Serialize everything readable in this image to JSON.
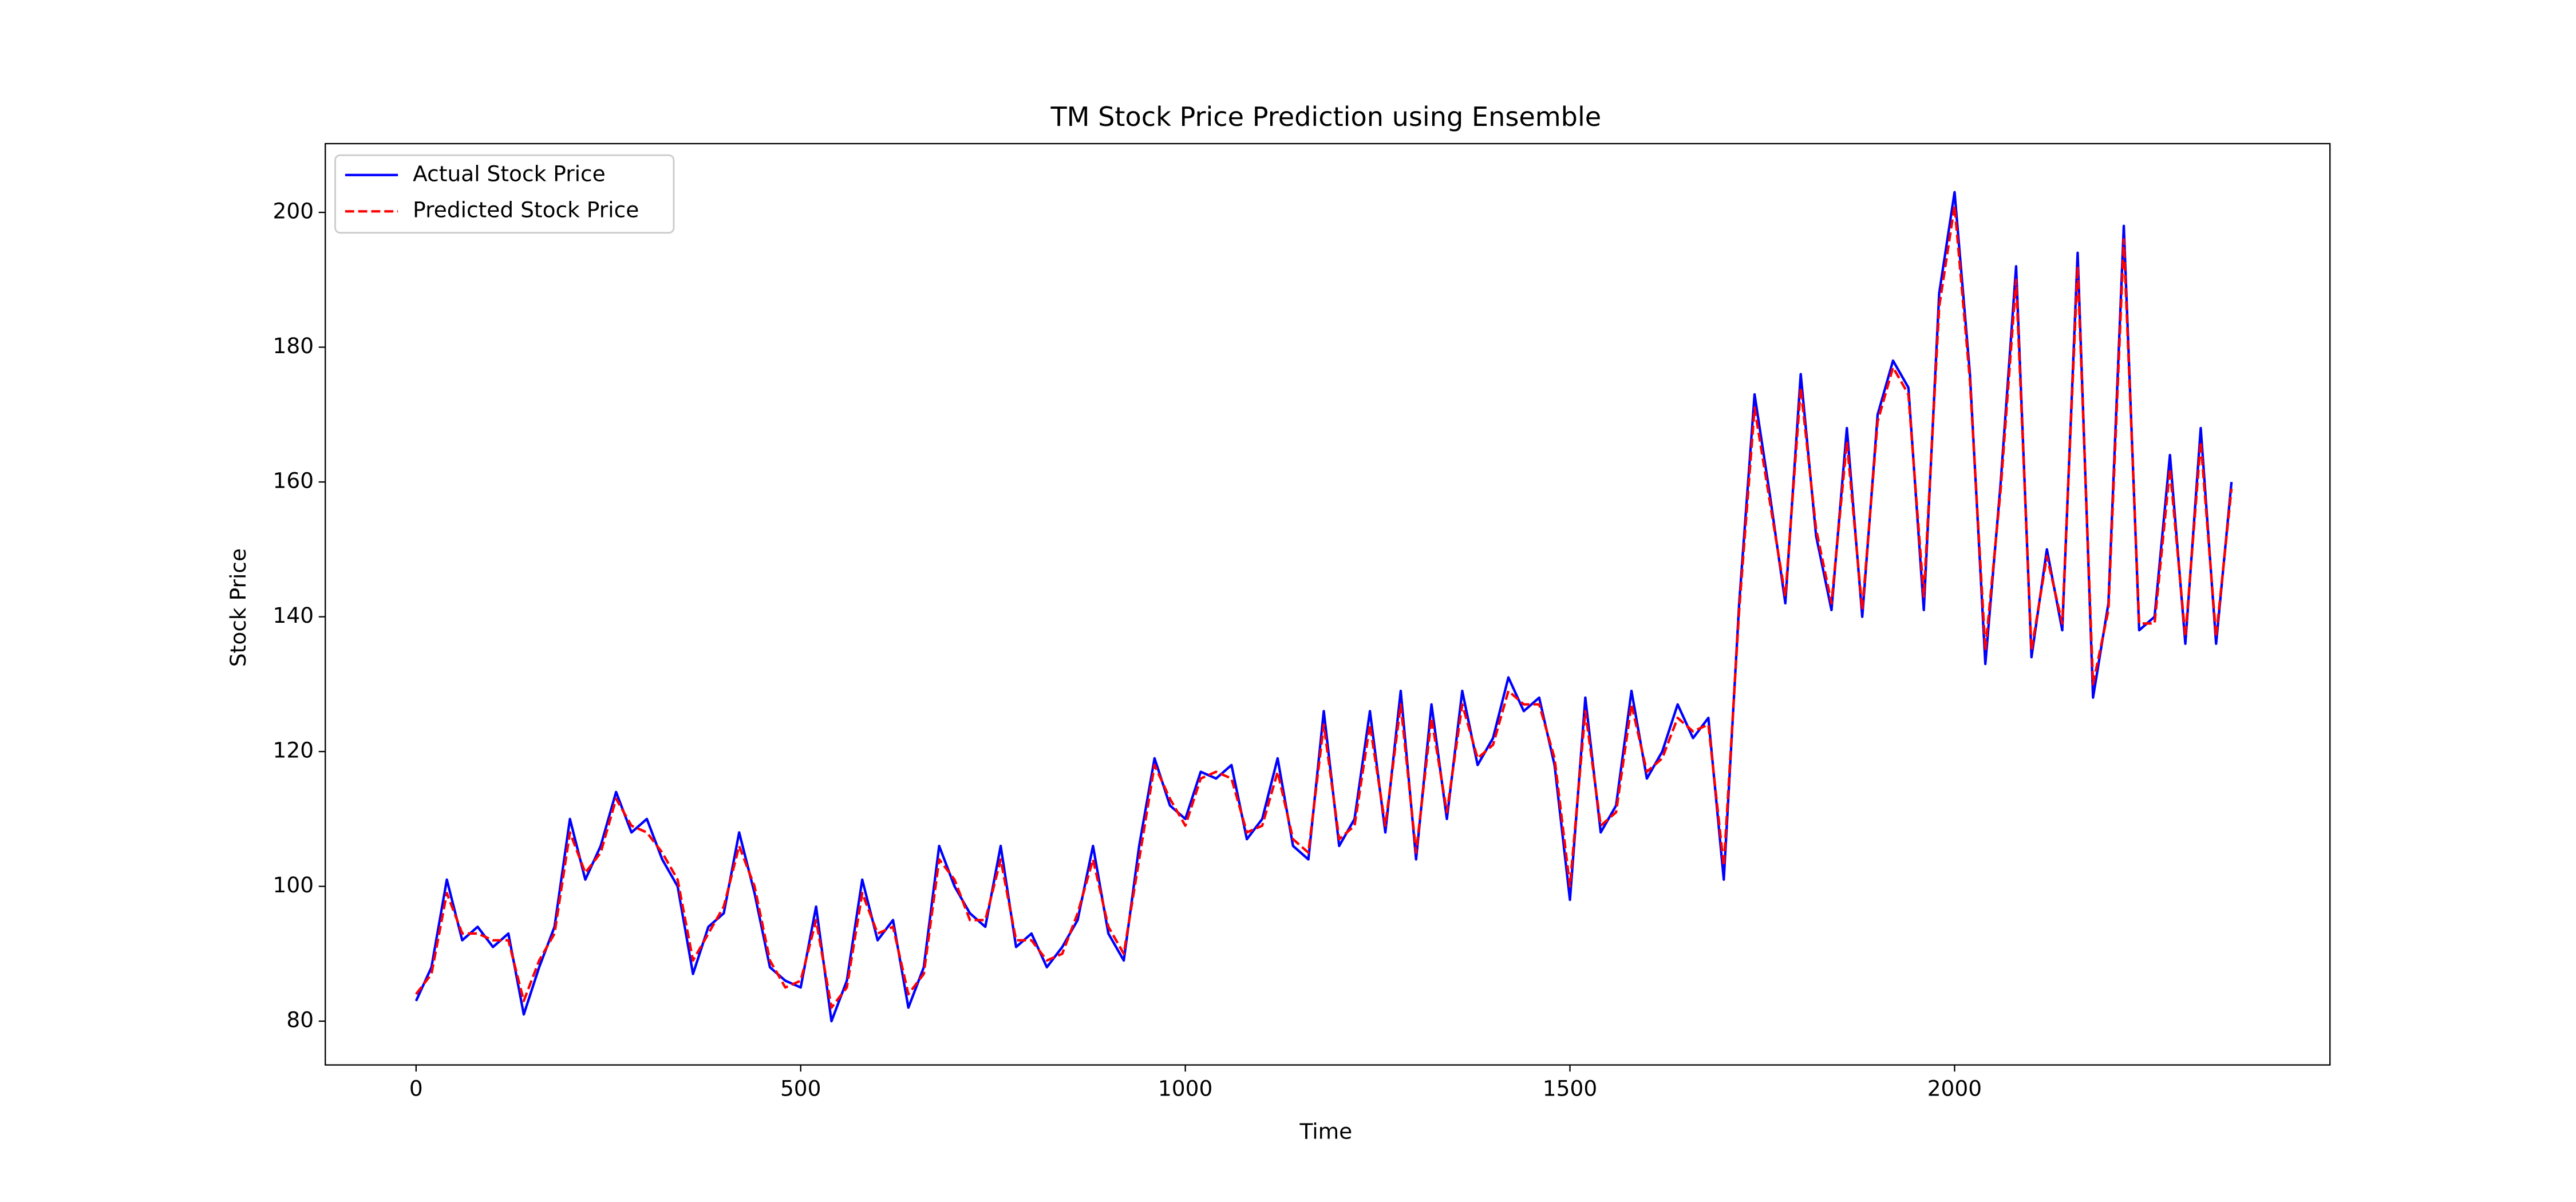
{
  "chart_data": {
    "type": "line",
    "title": "TM Stock Price Prediction using Ensemble",
    "x_label": "Time",
    "y_label": "Stock Price",
    "x": [
      0,
      20,
      40,
      60,
      80,
      100,
      120,
      140,
      160,
      180,
      200,
      220,
      240,
      260,
      280,
      300,
      320,
      340,
      360,
      380,
      400,
      420,
      440,
      460,
      480,
      500,
      520,
      540,
      560,
      580,
      600,
      620,
      640,
      660,
      680,
      700,
      720,
      740,
      760,
      780,
      800,
      820,
      840,
      860,
      880,
      900,
      920,
      940,
      960,
      980,
      1000,
      1020,
      1040,
      1060,
      1080,
      1100,
      1120,
      1140,
      1160,
      1180,
      1200,
      1220,
      1240,
      1260,
      1280,
      1300,
      1320,
      1340,
      1360,
      1380,
      1400,
      1420,
      1440,
      1460,
      1480,
      1500,
      1520,
      1540,
      1560,
      1580,
      1600,
      1620,
      1640,
      1660,
      1680,
      1700,
      1720,
      1740,
      1760,
      1780,
      1800,
      1820,
      1840,
      1860,
      1880,
      1900,
      1920,
      1940,
      1960,
      1980,
      2000,
      2020,
      2040,
      2060,
      2080,
      2100,
      2120,
      2140,
      2160,
      2180,
      2200,
      2220,
      2240,
      2260,
      2280,
      2300,
      2320,
      2340,
      2360
    ],
    "series": [
      {
        "name": "Actual Stock Price",
        "color": "#0000ff",
        "dashed": false,
        "values": [
          83,
          88,
          101,
          92,
          94,
          91,
          93,
          81,
          88,
          94,
          110,
          101,
          106,
          114,
          108,
          110,
          104,
          100,
          87,
          94,
          96,
          108,
          99,
          88,
          86,
          85,
          97,
          80,
          86,
          101,
          92,
          95,
          82,
          88,
          106,
          100,
          96,
          94,
          106,
          91,
          93,
          88,
          91,
          95,
          106,
          93,
          89,
          106,
          119,
          112,
          110,
          117,
          116,
          118,
          107,
          110,
          119,
          106,
          104,
          126,
          106,
          110,
          126,
          108,
          129,
          104,
          127,
          110,
          129,
          118,
          122,
          131,
          126,
          128,
          118,
          98,
          128,
          108,
          112,
          129,
          116,
          120,
          127,
          122,
          125,
          101,
          142,
          173,
          158,
          142,
          176,
          152,
          141,
          168,
          140,
          170,
          178,
          174,
          141,
          188,
          203,
          176,
          133,
          160,
          192,
          134,
          150,
          138,
          194,
          128,
          142,
          198,
          138,
          140,
          164,
          136,
          168,
          136,
          160
        ]
      },
      {
        "name": "Predicted Stock Price",
        "color": "#ff0000",
        "dashed": true,
        "values": [
          84,
          87,
          99,
          93,
          93,
          92,
          92,
          83,
          89,
          93,
          108,
          102,
          105,
          113,
          109,
          108,
          105,
          101,
          89,
          93,
          97,
          106,
          100,
          89,
          85,
          86,
          95,
          82,
          85,
          99,
          93,
          94,
          84,
          87,
          104,
          101,
          95,
          95,
          104,
          92,
          92,
          89,
          90,
          96,
          104,
          94,
          90,
          104,
          118,
          113,
          109,
          116,
          117,
          116,
          108,
          109,
          117,
          107,
          105,
          124,
          107,
          109,
          124,
          109,
          127,
          105,
          125,
          111,
          127,
          119,
          121,
          129,
          127,
          127,
          119,
          100,
          126,
          109,
          111,
          127,
          117,
          119,
          125,
          123,
          124,
          103,
          141,
          171,
          157,
          143,
          174,
          153,
          142,
          166,
          141,
          169,
          177,
          173,
          143,
          186,
          201,
          175,
          135,
          159,
          190,
          135,
          149,
          139,
          192,
          130,
          141,
          196,
          139,
          139,
          162,
          137,
          166,
          137,
          159
        ]
      }
    ],
    "xlim": [
      -118,
      2488
    ],
    "xticks": [
      0,
      500,
      1000,
      1500,
      2000
    ],
    "ylim": [
      73.5,
      210.2
    ],
    "yticks": [
      80,
      100,
      120,
      140,
      160,
      180,
      200
    ],
    "grid": false,
    "legend": "upper-left"
  }
}
